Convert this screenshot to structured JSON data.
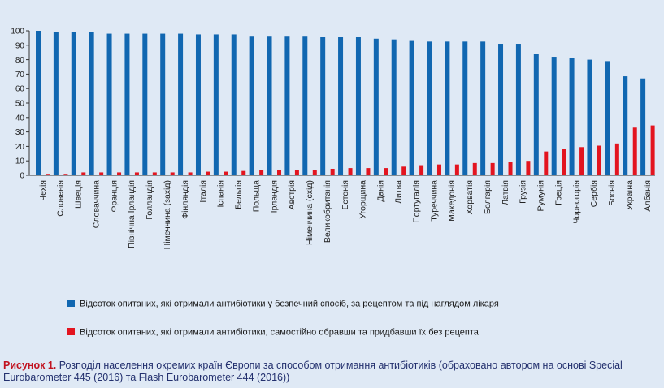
{
  "colors": {
    "prescribed": "#1167b1",
    "self": "#e3141f",
    "background": "#dfe9f5",
    "caption_label": "#c1121f",
    "caption_text": "#23306e"
  },
  "chart_data": {
    "type": "bar",
    "categories": [
      "Чехія",
      "Словенія",
      "Швеція",
      "Словаччина",
      "Франція",
      "Північна Ірландія",
      "Голландія",
      "Німеччина (захід)",
      "Фінляндія",
      "Італія",
      "Іспанія",
      "Бельгія",
      "Польща",
      "Ірландія",
      "Австрія",
      "Німеччина (схід)",
      "Великобританія",
      "Естонія",
      "Угорщина",
      "Данія",
      "Литва",
      "Португалія",
      "Туреччина",
      "Македонія",
      "Хорватія",
      "Болгарія",
      "Латвія",
      "Грузія",
      "Румунія",
      "Греція",
      "Чорногорія",
      "Сербія",
      "Боснія",
      "Україна",
      "Албанія"
    ],
    "series": [
      {
        "name": "Відсоток опитаних, які отримали антибіотики у безпечний спосіб, за рецептом та під наглядом лікаря",
        "values": [
          100,
          99,
          99,
          99,
          98,
          98,
          98,
          98,
          98,
          97.5,
          97.5,
          97.5,
          96.5,
          96.5,
          96.5,
          96.5,
          95.5,
          95.5,
          95.5,
          94.5,
          94,
          93.5,
          92.5,
          92.5,
          92.5,
          92.5,
          91,
          91,
          84,
          82,
          81,
          80,
          79,
          68.5,
          67
        ]
      },
      {
        "name": "Відсоток опитаних, які отримали антибіотики, самостійно обравши та придбавши їх без рецепта",
        "values": [
          1,
          1,
          2,
          2,
          2,
          2,
          2,
          2,
          2,
          2.5,
          2.5,
          3,
          3.5,
          3.5,
          3.5,
          3.5,
          4.5,
          5,
          5,
          5,
          6,
          7,
          7.5,
          7.5,
          8.5,
          8.5,
          9.5,
          10,
          16.5,
          18.5,
          19.5,
          20.5,
          22,
          33,
          34.5
        ]
      }
    ],
    "y_ticks": [
      "0",
      "10",
      "20",
      "30",
      "40",
      "50",
      "60",
      "70",
      "80",
      "90",
      "100"
    ],
    "ylim": [
      0,
      100
    ],
    "grid": false,
    "legend_position": "bottom-left"
  },
  "caption": {
    "label": "Рисунок 1.",
    "text": "Розподіл населення окремих країн Європи за способом отримання антибіотиків (обраховано автором на основі Special Eurobarometer 445 (2016) та Flash Eurobarometer 444 (2016))"
  }
}
